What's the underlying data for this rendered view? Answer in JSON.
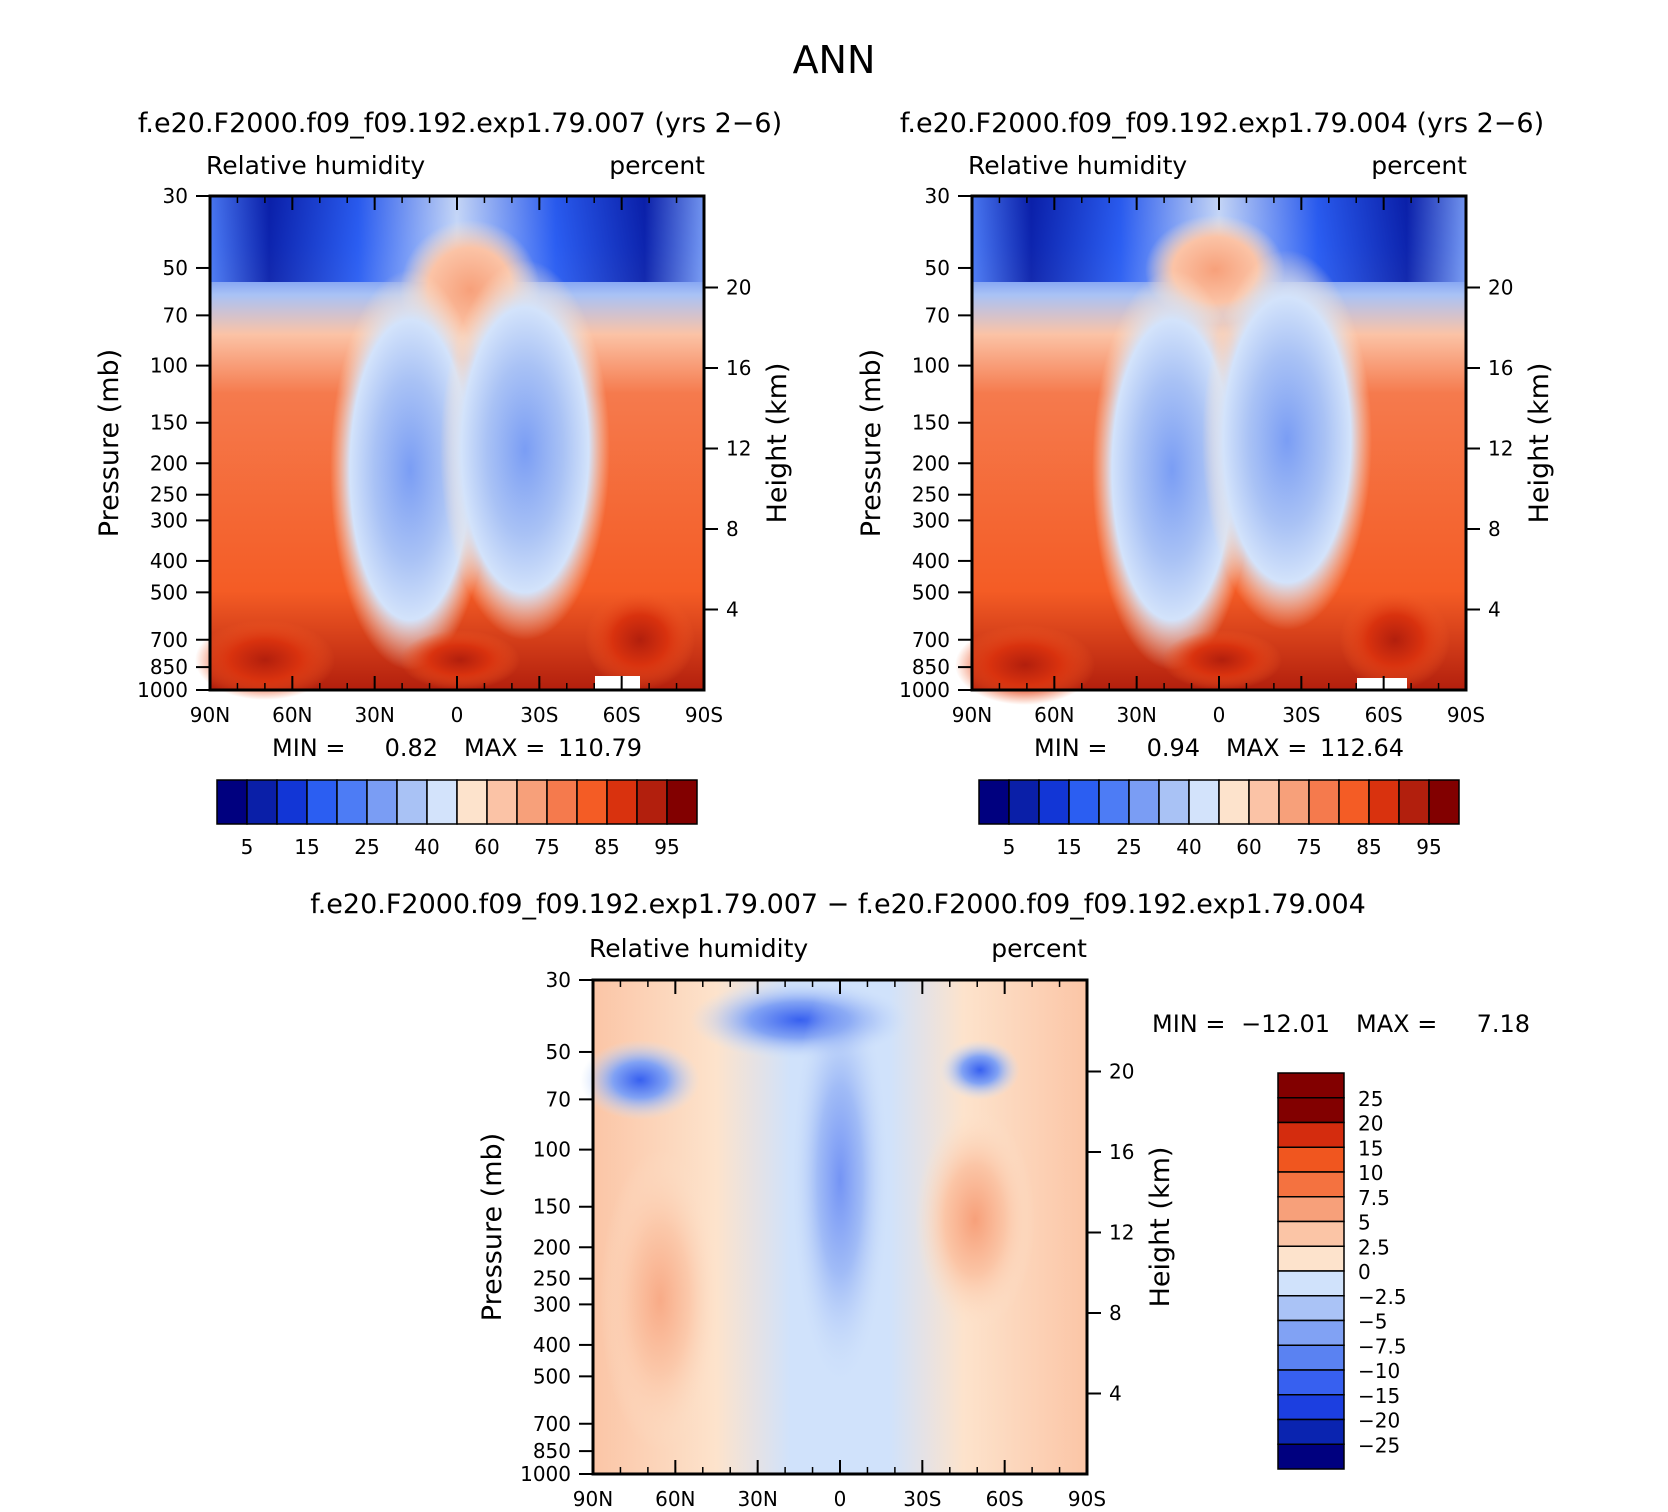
{
  "figure": {
    "title": "ANN"
  },
  "colors": {
    "abs_palette": [
      "#00007f",
      "#0a1fa8",
      "#1236d6",
      "#2b5ef2",
      "#4d7cf5",
      "#7a9df4",
      "#a9c2f5",
      "#d3e3fb",
      "#fde3cc",
      "#fbc3a6",
      "#f7a07a",
      "#f57a4d",
      "#f45c25",
      "#d9320e",
      "#b21f0d",
      "#820000"
    ],
    "diff_palette": [
      "#00007f",
      "#0a24b0",
      "#1c3fe0",
      "#3760f0",
      "#5a82f2",
      "#81a2f4",
      "#aac3f6",
      "#d0e2fb",
      "#fde3cc",
      "#fbc5a6",
      "#f7a07a",
      "#f47240",
      "#f0561f",
      "#d42c0e",
      "#820000"
    ]
  },
  "chart_data": [
    {
      "type": "heatmap",
      "panel": "top-left",
      "run_title": "f.e20.F2000.f09_f09.192.exp1.79.007 (yrs 2−6)",
      "left_string": "Relative humidity",
      "right_string": "percent",
      "ylabel": "Pressure (mb)",
      "y2label": "Height (km)",
      "x_ticks": [
        "90N",
        "60N",
        "30N",
        "0",
        "30S",
        "60S",
        "90S"
      ],
      "xlim": [
        90,
        -90
      ],
      "p_ticks": [
        "30",
        "50",
        "70",
        "100",
        "150",
        "200",
        "250",
        "300",
        "400",
        "500",
        "700",
        "850",
        "1000"
      ],
      "p_values": [
        30,
        50,
        70,
        100,
        150,
        200,
        250,
        300,
        400,
        500,
        700,
        850,
        1000
      ],
      "ylim_mb": [
        30,
        1000
      ],
      "height_ticks": [
        "20",
        "16",
        "12",
        "8",
        "4"
      ],
      "height_values_km": [
        20,
        16,
        12,
        8,
        4
      ],
      "min_label": "MIN =",
      "min_value": "0.82",
      "max_label": "MAX =",
      "max_value": "110.79",
      "colorbar_labels": [
        "5",
        "15",
        "25",
        "40",
        "60",
        "75",
        "85",
        "95"
      ],
      "colorbar_levels": [
        5,
        10,
        15,
        20,
        25,
        30,
        40,
        50,
        60,
        65,
        70,
        75,
        80,
        85,
        90,
        95
      ]
    },
    {
      "type": "heatmap",
      "panel": "top-right",
      "run_title": "f.e20.F2000.f09_f09.192.exp1.79.004 (yrs 2−6)",
      "left_string": "Relative humidity",
      "right_string": "percent",
      "ylabel": "Pressure (mb)",
      "y2label": "Height (km)",
      "x_ticks": [
        "90N",
        "60N",
        "30N",
        "0",
        "30S",
        "60S",
        "90S"
      ],
      "xlim": [
        90,
        -90
      ],
      "p_ticks": [
        "30",
        "50",
        "70",
        "100",
        "150",
        "200",
        "250",
        "300",
        "400",
        "500",
        "700",
        "850",
        "1000"
      ],
      "p_values": [
        30,
        50,
        70,
        100,
        150,
        200,
        250,
        300,
        400,
        500,
        700,
        850,
        1000
      ],
      "ylim_mb": [
        30,
        1000
      ],
      "height_ticks": [
        "20",
        "16",
        "12",
        "8",
        "4"
      ],
      "height_values_km": [
        20,
        16,
        12,
        8,
        4
      ],
      "min_label": "MIN =",
      "min_value": "0.94",
      "max_label": "MAX =",
      "max_value": "112.64",
      "colorbar_labels": [
        "5",
        "15",
        "25",
        "40",
        "60",
        "75",
        "85",
        "95"
      ],
      "colorbar_levels": [
        5,
        10,
        15,
        20,
        25,
        30,
        40,
        50,
        60,
        65,
        70,
        75,
        80,
        85,
        90,
        95
      ]
    },
    {
      "type": "heatmap",
      "panel": "bottom-difference",
      "run_title": "f.e20.F2000.f09_f09.192.exp1.79.007 − f.e20.F2000.f09_f09.192.exp1.79.004",
      "left_string": "Relative humidity",
      "right_string": "percent",
      "ylabel": "Pressure (mb)",
      "y2label": "Height (km)",
      "x_ticks": [
        "90N",
        "60N",
        "30N",
        "0",
        "30S",
        "60S",
        "90S"
      ],
      "xlim": [
        90,
        -90
      ],
      "p_ticks": [
        "30",
        "50",
        "70",
        "100",
        "150",
        "200",
        "250",
        "300",
        "400",
        "500",
        "700",
        "850",
        "1000"
      ],
      "p_values": [
        30,
        50,
        70,
        100,
        150,
        200,
        250,
        300,
        400,
        500,
        700,
        850,
        1000
      ],
      "ylim_mb": [
        30,
        1000
      ],
      "height_ticks": [
        "20",
        "16",
        "12",
        "8",
        "4"
      ],
      "height_values_km": [
        20,
        16,
        12,
        8,
        4
      ],
      "min_label": "MIN =",
      "min_value": "−12.01",
      "max_label": "MAX =",
      "max_value": "7.18",
      "colorbar_labels": [
        "25",
        "20",
        "15",
        "10",
        "7.5",
        "5",
        "2.5",
        "0",
        "−2.5",
        "−5",
        "−7.5",
        "−10",
        "−15",
        "−20",
        "−25"
      ],
      "colorbar_levels": [
        -25,
        -20,
        -15,
        -10,
        -7.5,
        -5,
        -2.5,
        0,
        2.5,
        5,
        7.5,
        10,
        15,
        20,
        25
      ]
    }
  ]
}
